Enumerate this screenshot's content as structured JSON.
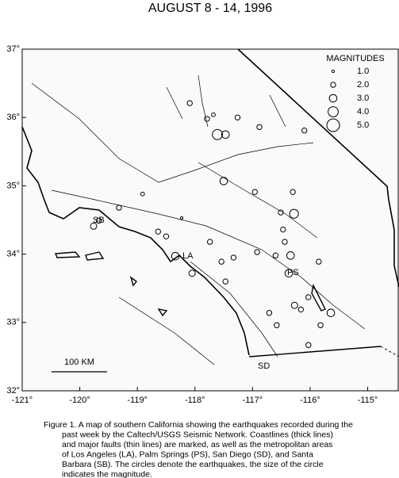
{
  "chart_data": {
    "type": "map",
    "title": "AUGUST 8 - 14, 1996",
    "xlim": [
      -121,
      -114.47
    ],
    "ylim": [
      32,
      37
    ],
    "xticks": [
      {
        "value": -121,
        "label": "-121°"
      },
      {
        "value": -120,
        "label": "-120°"
      },
      {
        "value": -119,
        "label": "-119°"
      },
      {
        "value": -118,
        "label": "-118°"
      },
      {
        "value": -117,
        "label": "-117°"
      },
      {
        "value": -116,
        "label": "-116°"
      },
      {
        "value": -115,
        "label": "-115°"
      }
    ],
    "yticks": [
      {
        "value": 37,
        "label": "37°"
      },
      {
        "value": 36,
        "label": "36°"
      },
      {
        "value": 35,
        "label": "35°"
      },
      {
        "value": 34,
        "label": "34°"
      },
      {
        "value": 33,
        "label": "33°"
      },
      {
        "value": 32,
        "label": "32°"
      }
    ],
    "legend_title": "MAGNITUDES",
    "legend": {
      "values": [
        1,
        2,
        3,
        4,
        5
      ],
      "value_labels": [
        "1.0",
        "2.0",
        "3.0",
        "4.0",
        "5.0"
      ]
    },
    "x": [
      -117.61,
      -117.47,
      -118.09,
      -117.79,
      -117.68,
      -117.26,
      -116.88,
      -116.1,
      -117.5,
      -116.96,
      -116.3,
      -116.28,
      -116.51,
      -116.47,
      -116.44,
      -116.34,
      -116.6,
      -116.92,
      -116.37,
      -116.03,
      -116.27,
      -116.16,
      -115.64,
      -115.82,
      -116.03,
      -118.34,
      -118.05,
      -118.5,
      -118.64,
      -118.91,
      -119.32,
      -119.67,
      -119.76,
      -117.33,
      -117.54,
      -116.71,
      -116.58,
      -115.85,
      -118.23,
      -117.74,
      -117.47
    ],
    "y": [
      35.75,
      35.75,
      36.21,
      35.98,
      36.04,
      36.0,
      35.86,
      35.81,
      35.07,
      34.91,
      34.91,
      34.59,
      34.61,
      34.36,
      34.18,
      33.98,
      33.98,
      34.03,
      33.72,
      33.37,
      33.25,
      33.19,
      33.14,
      32.96,
      32.67,
      33.97,
      33.72,
      34.26,
      34.33,
      34.88,
      34.68,
      34.49,
      34.41,
      33.95,
      33.89,
      33.14,
      32.96,
      33.89,
      34.53,
      34.18,
      33.6
    ],
    "size": [
      4,
      3,
      2,
      2,
      1.5,
      2,
      2,
      2,
      3,
      2,
      2,
      3.5,
      2,
      2,
      2,
      3,
      2,
      2,
      3,
      2,
      2.5,
      2,
      3,
      2,
      2,
      3,
      2.5,
      2,
      2,
      1.5,
      2,
      2,
      2.5,
      2,
      2,
      2,
      2,
      2,
      1,
      2,
      2
    ],
    "places": [
      "SB",
      "LA",
      "PS",
      "SD"
    ],
    "scale_label": "100 KM",
    "caption": [
      "Figure 1. A map of southern California showing the earthquakes recorded during the",
      "past week by the Caltech/USGS Seismic Network.  Coastlines (thick lines)",
      "and major faults (thin lines) are marked, as well as the metropolitan areas",
      "of Los Angeles (LA), Palm Springs (PS), San Diego (SD), and Santa",
      "Barbara (SB).  The circles denote the earthquakes, the size of the circle",
      "indicates the magnitude."
    ]
  }
}
